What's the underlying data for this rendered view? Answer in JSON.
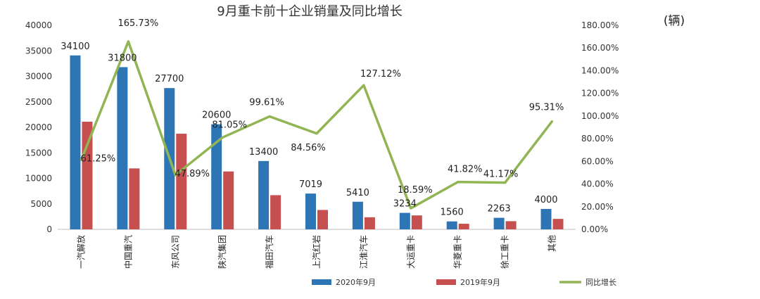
{
  "chart_data": {
    "type": "bar",
    "title": "9月重卡前十企业销量及同比增长",
    "unit_label": "(辆)",
    "categories": [
      "一汽解放",
      "中国重汽",
      "东风公司",
      "陕汽集团",
      "福田汽车",
      "上汽红岩",
      "江淮汽车",
      "大运重卡",
      "华菱重卡",
      "徐工重卡",
      "其他"
    ],
    "series": [
      {
        "name": "2020年9月",
        "kind": "bar",
        "axis": "left",
        "color": "#2e75b6",
        "values": [
          34100,
          31800,
          27700,
          20600,
          13400,
          7019,
          5410,
          3234,
          1560,
          2263,
          4000
        ],
        "labels": [
          "34100",
          "31800",
          "27700",
          "20600",
          "13400",
          "7019",
          "5410",
          "3234",
          "1560",
          "2263",
          "4000"
        ]
      },
      {
        "name": "2019年9月",
        "kind": "bar",
        "axis": "left",
        "color": "#c5504f",
        "values": [
          21100,
          11950,
          18750,
          11350,
          6700,
          3800,
          2370,
          2730,
          1100,
          1600,
          2050
        ]
      },
      {
        "name": "同比增长",
        "kind": "line",
        "axis": "right",
        "color": "#92b554",
        "values": [
          61.25,
          165.73,
          47.89,
          81.05,
          99.61,
          84.56,
          127.12,
          18.59,
          41.82,
          41.17,
          95.31
        ],
        "labels": [
          "61.25%",
          "165.73%",
          "47.89%",
          "81.05%",
          "99.61%",
          "84.56%",
          "127.12%",
          "18.59%",
          "41.82%",
          "41.17%",
          "95.31%"
        ]
      }
    ],
    "y_left": {
      "range": [
        0,
        40000
      ],
      "ticks": [
        "0",
        "5000",
        "10000",
        "15000",
        "20000",
        "25000",
        "30000",
        "35000",
        "40000"
      ]
    },
    "y_right": {
      "range": [
        0,
        180
      ],
      "ticks": [
        "0.00%",
        "20.00%",
        "40.00%",
        "60.00%",
        "80.00%",
        "100.00%",
        "120.00%",
        "140.00%",
        "160.00%",
        "180.00%"
      ]
    },
    "grid": false,
    "legend_position": "bottom"
  }
}
